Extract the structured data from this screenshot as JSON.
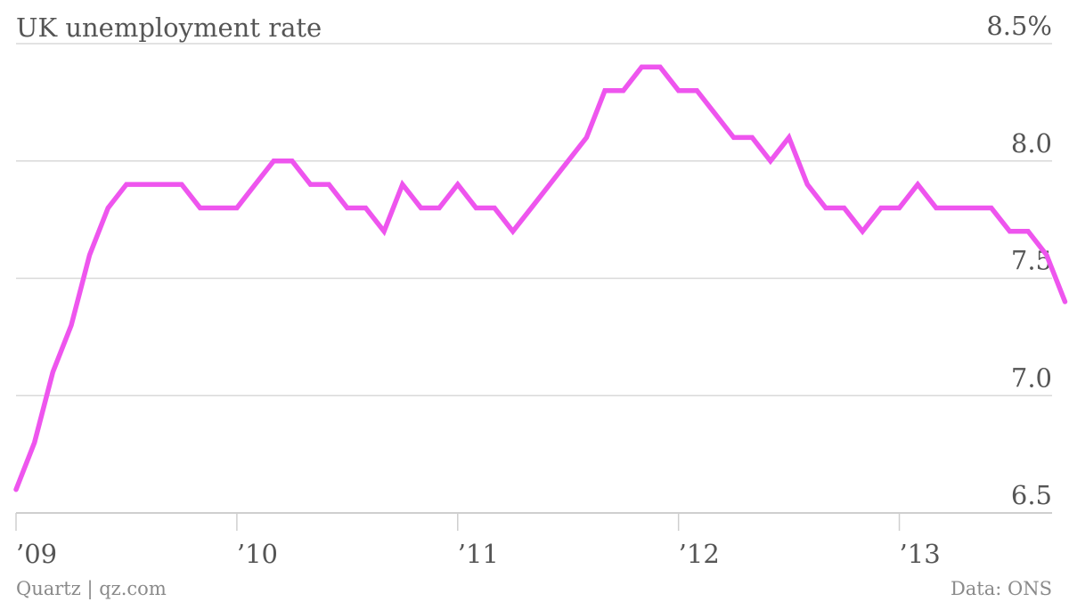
{
  "title": "UK unemployment rate",
  "footer": {
    "source_left": "Quartz | qz.com",
    "source_right": "Data: ONS"
  },
  "colors": {
    "line": "#ee55ee",
    "grid": "#d9d9d9",
    "text": "#555555",
    "footer_text": "#8a8a8a"
  },
  "chart_data": {
    "type": "line",
    "title": "UK unemployment rate",
    "xlabel": "",
    "ylabel": "",
    "ylim": [
      6.5,
      8.5
    ],
    "y_ticks": [
      {
        "value": 8.5,
        "label": "8.5%"
      },
      {
        "value": 8.0,
        "label": "8.0"
      },
      {
        "value": 7.5,
        "label": "7.5"
      },
      {
        "value": 7.0,
        "label": "7.0"
      },
      {
        "value": 6.5,
        "label": "6.5"
      }
    ],
    "x_ticks": [
      {
        "value": 2009,
        "label": "’09"
      },
      {
        "value": 2010,
        "label": "’10"
      },
      {
        "value": 2011,
        "label": "’11"
      },
      {
        "value": 2012,
        "label": "’12"
      },
      {
        "value": 2013,
        "label": "’13"
      }
    ],
    "grid": true,
    "legend": "none",
    "series": [
      {
        "color": "#ee55ee",
        "start": "2009-01",
        "frequency": "monthly",
        "values": [
          6.6,
          6.8,
          7.1,
          7.3,
          7.6,
          7.8,
          7.9,
          7.9,
          7.9,
          7.9,
          7.8,
          7.8,
          7.8,
          7.9,
          8.0,
          8.0,
          7.9,
          7.9,
          7.8,
          7.8,
          7.7,
          7.9,
          7.8,
          7.8,
          7.9,
          7.8,
          7.8,
          7.7,
          7.8,
          7.9,
          8.0,
          8.1,
          8.3,
          8.3,
          8.4,
          8.4,
          8.3,
          8.3,
          8.2,
          8.1,
          8.1,
          8.0,
          8.1,
          7.9,
          7.8,
          7.8,
          7.7,
          7.8,
          7.8,
          7.9,
          7.8,
          7.8,
          7.8,
          7.8,
          7.7,
          7.7,
          7.6,
          7.4
        ]
      }
    ]
  }
}
